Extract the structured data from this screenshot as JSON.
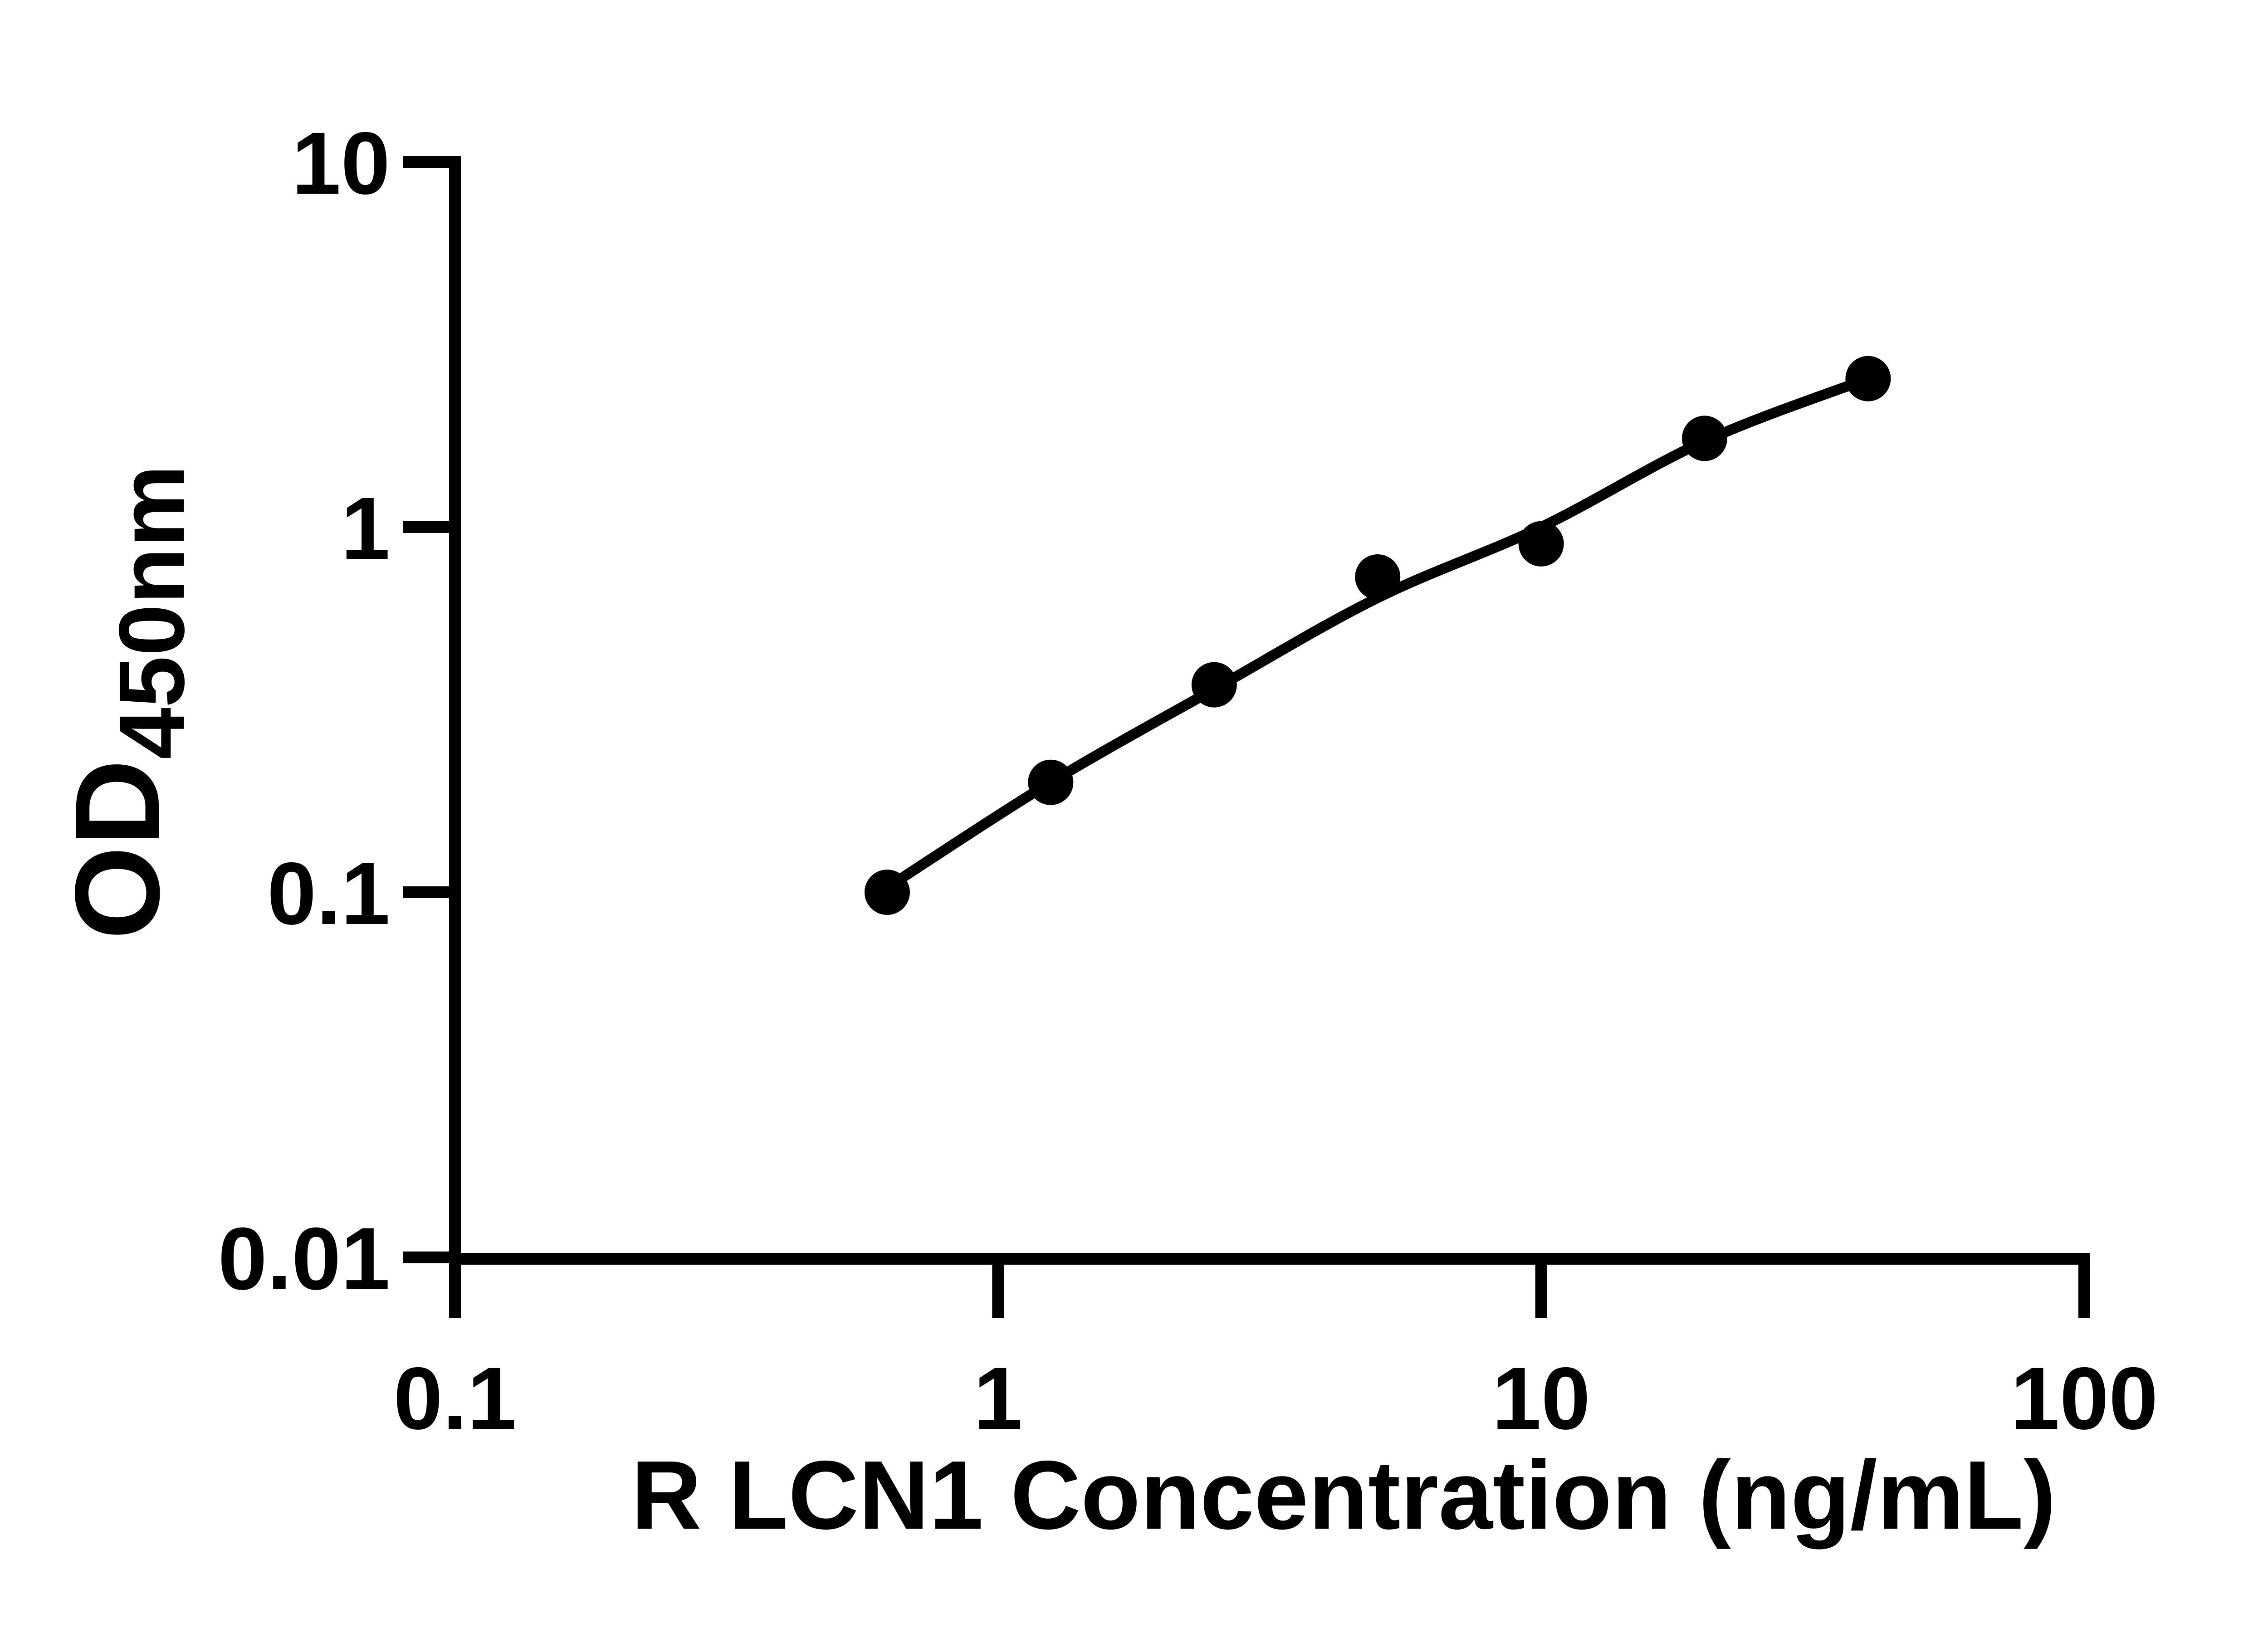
{
  "figure": {
    "background": "#ffffff",
    "ink": "#000000"
  },
  "chart_data": {
    "type": "scatter",
    "title": "",
    "xlabel": "R LCN1 Concentration (ng/mL)",
    "ylabel_main": "OD",
    "ylabel_sub": "450nm",
    "x_scale": "log",
    "y_scale": "log",
    "xlim": [
      0.1,
      100
    ],
    "ylim": [
      0.01,
      10
    ],
    "x_tick_labels": [
      "0.1",
      "1",
      "10",
      "100"
    ],
    "x_tick_values": [
      0.1,
      1,
      10,
      100
    ],
    "y_tick_labels": [
      "10",
      "1",
      "0.1",
      "0.01"
    ],
    "y_tick_values": [
      10,
      1,
      0.1,
      0.01
    ],
    "grid": false,
    "legend_position": "none",
    "series": [
      {
        "name": "R LCN1 standard curve",
        "marker": "filled-circle",
        "color": "#000000",
        "x": [
          0.625,
          1.25,
          2.5,
          5,
          10,
          20,
          40
        ],
        "y": [
          0.1,
          0.2,
          0.37,
          0.73,
          0.9,
          1.75,
          2.55
        ]
      }
    ],
    "fit_curve": {
      "name": "fitted standard curve line",
      "x": [
        0.625,
        1.25,
        2.5,
        5,
        10,
        20,
        40
      ],
      "y": [
        0.103,
        0.2,
        0.36,
        0.64,
        1.0,
        1.72,
        2.55
      ]
    }
  }
}
